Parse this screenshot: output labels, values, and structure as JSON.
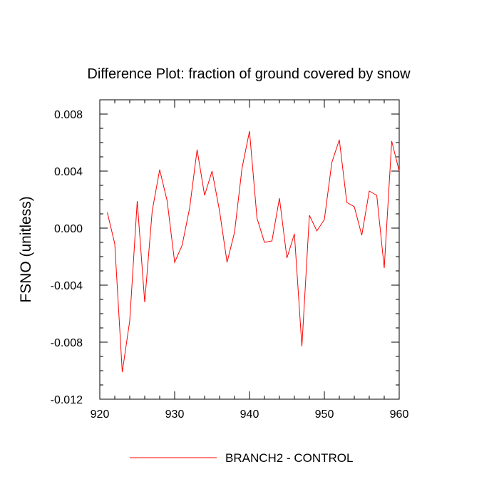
{
  "chart_data": {
    "type": "line",
    "title": "Difference Plot: fraction of ground covered by snow",
    "xlabel": "",
    "ylabel": "FSNO  (unitless)",
    "xlim": [
      920,
      960
    ],
    "ylim": [
      -0.012,
      0.009
    ],
    "x_ticks": [
      920,
      930,
      940,
      950,
      960
    ],
    "x_tick_labels": [
      "920",
      "930",
      "940",
      "950",
      "960"
    ],
    "y_ticks": [
      -0.012,
      -0.008,
      -0.004,
      0.0,
      0.004,
      0.008
    ],
    "y_tick_labels": [
      "-0.012",
      "-0.008",
      "-0.004",
      "0.000",
      "0.004",
      "0.008"
    ],
    "grid": false,
    "legend_position": "bottom",
    "series": [
      {
        "name": "BRANCH2 - CONTROL",
        "color": "#ff0000",
        "x": [
          921,
          922,
          923,
          924,
          925,
          926,
          927,
          928,
          929,
          930,
          931,
          932,
          933,
          934,
          935,
          936,
          937,
          938,
          939,
          940,
          941,
          942,
          943,
          944,
          945,
          946,
          947,
          948,
          949,
          950,
          951,
          952,
          953,
          954,
          955,
          956,
          957,
          958,
          959,
          960
        ],
        "y": [
          0.0011,
          -0.0011,
          -0.0101,
          -0.0065,
          0.0019,
          -0.0052,
          0.0012,
          0.0041,
          0.0019,
          -0.0024,
          -0.0012,
          0.0014,
          0.0055,
          0.0023,
          0.004,
          0.0012,
          -0.0024,
          -0.0003,
          0.0042,
          0.0068,
          0.0007,
          -0.001,
          -0.0009,
          0.0021,
          -0.0021,
          -0.0004,
          -0.0083,
          0.0009,
          -0.0002,
          0.0006,
          0.0046,
          0.0062,
          0.0018,
          0.0015,
          -0.0005,
          0.0026,
          0.0023,
          -0.0028,
          0.0061,
          0.004
        ]
      }
    ]
  }
}
